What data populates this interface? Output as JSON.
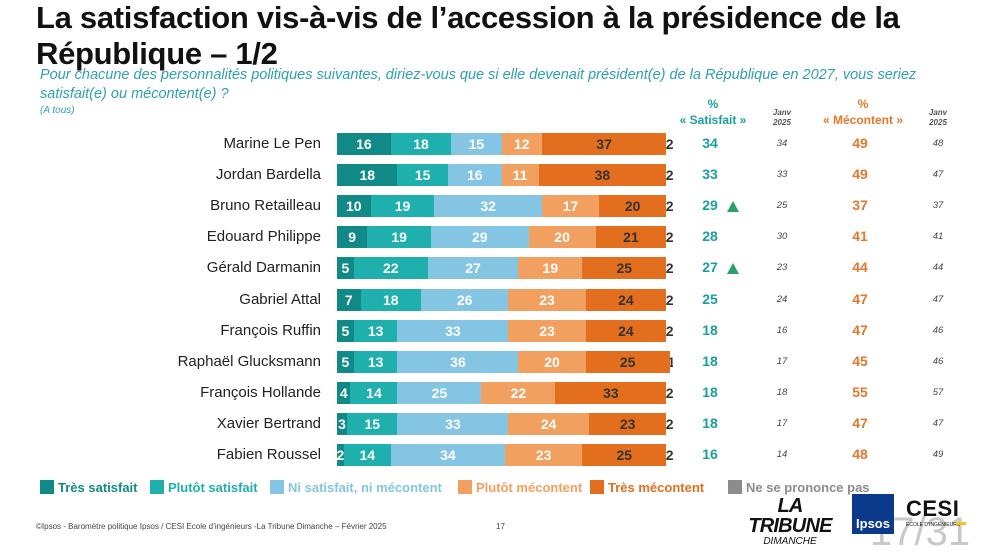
{
  "title": "La satisfaction vis-à-vis de l’accession à la présidence de la République – 1/2",
  "question": "Pour chacune des personnalités politiques suivantes, diriez-vous que si elle devenait président(e) de la République en 2027, vous seriez satisfait(e) ou mécontent(e) ?",
  "audience": "(A tous)",
  "headers": {
    "sat_pct": "%",
    "sat_label": "« Satisfait »",
    "mec_pct": "%",
    "mec_label": "« Mécontent »",
    "jan_line1": "Janv",
    "jan_line2": "2025"
  },
  "colors": {
    "tres_satisfait": "#118a87",
    "plutot_satisfait": "#1fb0ad",
    "ni_ni": "#83c5e3",
    "plutot_mecontent": "#f2a05f",
    "tres_mecontent": "#e36f1e",
    "nsp": "#8c8c8c",
    "up_arrow": "#2aa06b"
  },
  "legend": [
    {
      "label": "Très satisfait",
      "color": "#118a87",
      "text_color": "#118a87"
    },
    {
      "label": "Plutôt satisfait",
      "color": "#1fb0ad",
      "text_color": "#1fb0ad"
    },
    {
      "label": "Ni satisfait, ni mécontent",
      "color": "#83c5e3",
      "text_color": "#83c5e3"
    },
    {
      "label": "Plutôt mécontent",
      "color": "#f2a05f",
      "text_color": "#f2a05f"
    },
    {
      "label": "Très mécontent",
      "color": "#e36f1e",
      "text_color": "#e36f1e"
    },
    {
      "label": "Ne se prononce pas",
      "color": "#8c8c8c",
      "text_color": "#8c8c8c"
    }
  ],
  "chart_data": {
    "type": "bar",
    "orientation": "horizontal-stacked-100",
    "categories": [
      "Marine Le Pen",
      "Jordan Bardella",
      "Bruno Retailleau",
      "Edouard Philippe",
      "Gérald Darmanin",
      "Gabriel Attal",
      "François Ruffin",
      "Raphaël Glucksmann",
      "François Hollande",
      "Xavier Bertrand",
      "Fabien Roussel"
    ],
    "series": [
      {
        "name": "Très satisfait",
        "values": [
          16,
          18,
          10,
          9,
          5,
          7,
          5,
          5,
          4,
          3,
          2
        ]
      },
      {
        "name": "Plutôt satisfait",
        "values": [
          18,
          15,
          19,
          19,
          22,
          18,
          13,
          13,
          14,
          15,
          14
        ]
      },
      {
        "name": "Ni satisfait, ni mécontent",
        "values": [
          15,
          16,
          32,
          29,
          27,
          26,
          33,
          36,
          25,
          33,
          34
        ]
      },
      {
        "name": "Plutôt mécontent",
        "values": [
          12,
          11,
          17,
          20,
          19,
          23,
          23,
          20,
          22,
          24,
          23
        ]
      },
      {
        "name": "Très mécontent",
        "values": [
          37,
          38,
          20,
          21,
          25,
          24,
          24,
          25,
          33,
          23,
          25
        ]
      },
      {
        "name": "Ne se prononce pas",
        "values": [
          2,
          2,
          2,
          2,
          2,
          2,
          2,
          1,
          2,
          2,
          2
        ]
      }
    ],
    "satisfait": [
      34,
      33,
      29,
      28,
      27,
      25,
      18,
      18,
      18,
      18,
      16
    ],
    "satisfait_jan2025": [
      34,
      33,
      25,
      30,
      23,
      24,
      16,
      17,
      18,
      17,
      14
    ],
    "satisfait_up": [
      false,
      false,
      true,
      false,
      true,
      false,
      false,
      false,
      false,
      false,
      false
    ],
    "mecontent": [
      49,
      49,
      37,
      41,
      44,
      47,
      47,
      45,
      55,
      47,
      48
    ],
    "mecontent_jan2025": [
      48,
      47,
      37,
      41,
      44,
      47,
      46,
      46,
      57,
      47,
      49
    ],
    "xlim": [
      0,
      100
    ]
  },
  "footer": {
    "source": "©Ipsos - Baromètre politique Ipsos / CESI Ecole d’ingénieurs -La Tribune Dimanche – Février 2025",
    "page": "17",
    "big_page": "17/31"
  },
  "logos": {
    "tribune_line1": "LA TRIBUNE",
    "tribune_line2": "DIMANCHE",
    "ipsos": "Ipsos",
    "cesi_line1": "CESI",
    "cesi_line2": "ÉCOLE D’INGÉNIEURS"
  }
}
